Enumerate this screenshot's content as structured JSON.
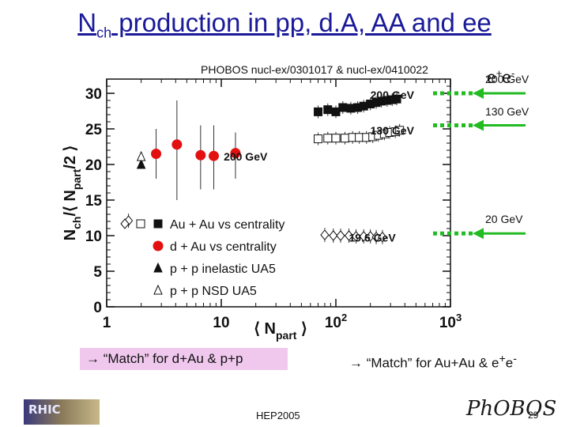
{
  "slide": {
    "title_main": "N",
    "title_sub": "ch",
    "title_rest": " production in pp, d.A, AA and ee",
    "source": "PHOBOS nucl-ex/0301017 & nucl-ex/0410022",
    "ee_label_base": "e",
    "ee_label_sup1": "+",
    "ee_label_mid": "e",
    "ee_label_sup2": "-",
    "match_left_text": "“Match” for d+Au & p+p",
    "match_right_text": "“Match” for Au+Au & e",
    "match_right_sup1": "+",
    "match_right_mid": "e",
    "match_right_sup2": "-",
    "conference": "HEP2005",
    "page_number": "29",
    "logo_left_text": "RHIC",
    "logo_right_text": "PhOBOS",
    "arrow_glyph": "→"
  },
  "colors": {
    "title": "#1a1a9a",
    "red": "#e31010",
    "green": "#22bb22",
    "left_box": "#f0c8ee"
  },
  "ee_energies": [
    {
      "label": "200 GeV",
      "y": 30.0
    },
    {
      "label": "130 GeV",
      "y": 25.5
    },
    {
      "label": "20 GeV",
      "y": 10.3
    }
  ],
  "chart_data": {
    "type": "scatter",
    "title": "",
    "xlabel_main": "⟨ N",
    "xlabel_sub": "part",
    "xlabel_end": " ⟩",
    "ylabel_main": "N",
    "ylabel_sub1": "ch",
    "ylabel_mid": "/⟨ N",
    "ylabel_sub2": "part",
    "ylabel_end": "/2 ⟩",
    "x_scale": "log",
    "xlim": [
      1,
      1000
    ],
    "ylim": [
      0,
      32
    ],
    "x_ticks": [
      {
        "value": 1,
        "label": "1"
      },
      {
        "value": 10,
        "label": "10"
      },
      {
        "value": 100,
        "label": "10",
        "sup": "2"
      },
      {
        "value": 1000,
        "label": "10",
        "sup": "3"
      }
    ],
    "y_ticks": [
      0,
      5,
      10,
      15,
      20,
      25,
      30
    ],
    "y_tick_labels": [
      "0",
      "5",
      "10",
      "15",
      "20",
      "25",
      "30"
    ],
    "annotations": [
      {
        "text": "200 GeV",
        "x": 200,
        "y": 29.8
      },
      {
        "text": "130 GeV",
        "x": 200,
        "y": 24.8
      },
      {
        "text": "19.6 GeV",
        "x": 130,
        "y": 9.7
      },
      {
        "text": "200 GeV",
        "x": 10.5,
        "y": 21.1
      }
    ],
    "legend": {
      "placement": "bottom-left",
      "entries": [
        {
          "label": "Au + Au vs centrality",
          "markers": [
            "open-diamond",
            "open-square",
            "filled-square"
          ]
        },
        {
          "label": "d + Au vs centrality",
          "markers": [
            "red-circle"
          ]
        },
        {
          "label": "p + p inelastic UA5",
          "markers": [
            "filled-triangle"
          ]
        },
        {
          "label": "p + p NSD UA5",
          "markers": [
            "open-triangle"
          ]
        }
      ]
    },
    "series": [
      {
        "marker": "filled-square",
        "points": [
          {
            "x": 70,
            "y": 27.4
          },
          {
            "x": 85,
            "y": 27.7
          },
          {
            "x": 100,
            "y": 27.4
          },
          {
            "x": 115,
            "y": 28.0
          },
          {
            "x": 135,
            "y": 27.9
          },
          {
            "x": 155,
            "y": 28.0
          },
          {
            "x": 175,
            "y": 28.2
          },
          {
            "x": 200,
            "y": 28.5
          },
          {
            "x": 225,
            "y": 28.7
          },
          {
            "x": 250,
            "y": 28.9
          },
          {
            "x": 280,
            "y": 29.0
          },
          {
            "x": 310,
            "y": 29.1
          },
          {
            "x": 340,
            "y": 29.2
          }
        ]
      },
      {
        "marker": "open-square",
        "points": [
          {
            "x": 70,
            "y": 23.6
          },
          {
            "x": 85,
            "y": 23.7
          },
          {
            "x": 100,
            "y": 23.7
          },
          {
            "x": 120,
            "y": 23.7
          },
          {
            "x": 140,
            "y": 23.8
          },
          {
            "x": 160,
            "y": 23.8
          },
          {
            "x": 185,
            "y": 23.8
          },
          {
            "x": 210,
            "y": 23.9
          },
          {
            "x": 235,
            "y": 24.1
          },
          {
            "x": 265,
            "y": 24.3
          },
          {
            "x": 295,
            "y": 24.5
          },
          {
            "x": 330,
            "y": 24.6
          },
          {
            "x": 360,
            "y": 24.8
          }
        ]
      },
      {
        "marker": "open-diamond",
        "points": [
          {
            "x": 80,
            "y": 10.1
          },
          {
            "x": 95,
            "y": 10.0
          },
          {
            "x": 110,
            "y": 10.0
          },
          {
            "x": 130,
            "y": 10.0
          },
          {
            "x": 150,
            "y": 9.9
          },
          {
            "x": 175,
            "y": 9.9
          },
          {
            "x": 200,
            "y": 9.9
          },
          {
            "x": 225,
            "y": 9.8
          },
          {
            "x": 255,
            "y": 9.8
          }
        ]
      },
      {
        "marker": "open-diamond",
        "points": [
          {
            "x": 1.55,
            "y": 12.1
          }
        ]
      },
      {
        "marker": "red-circle",
        "points": [
          {
            "x": 2.7,
            "y": 21.5
          },
          {
            "x": 4.1,
            "y": 22.8
          },
          {
            "x": 6.6,
            "y": 21.3
          },
          {
            "x": 8.6,
            "y": 21.2
          },
          {
            "x": 13.3,
            "y": 21.6
          }
        ],
        "error_bars": [
          {
            "x": 2.7,
            "low": 18.0,
            "high": 25.0
          },
          {
            "x": 4.1,
            "low": 15.0,
            "high": 29.0
          },
          {
            "x": 6.6,
            "low": 16.5,
            "high": 25.5
          },
          {
            "x": 8.6,
            "low": 16.5,
            "high": 25.5
          },
          {
            "x": 13.3,
            "low": 18.0,
            "high": 24.5
          }
        ]
      },
      {
        "marker": "filled-triangle",
        "points": [
          {
            "x": 2.0,
            "y": 20.0
          }
        ]
      },
      {
        "marker": "open-triangle",
        "points": [
          {
            "x": 2.0,
            "y": 21.1
          }
        ]
      }
    ]
  }
}
